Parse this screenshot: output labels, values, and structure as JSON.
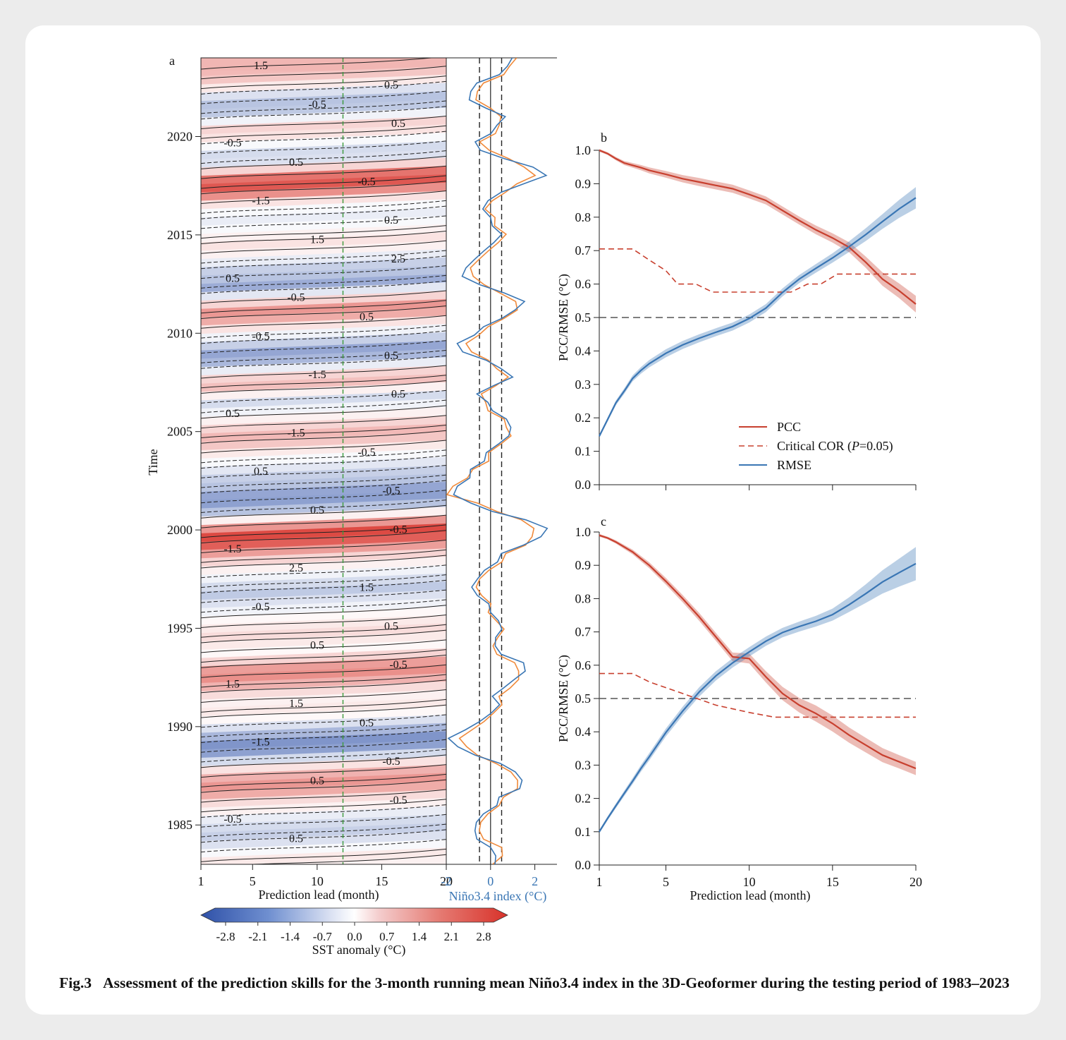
{
  "panel_labels": {
    "a": "a",
    "b": "b",
    "c": "c"
  },
  "caption": {
    "label": "Fig.3",
    "text": "Assessment of the prediction skills for the 3-month running mean Niño3.4 index in the 3D-Geoformer during the testing period of 1983–2023"
  },
  "colors": {
    "pcc": "#c8402f",
    "rmse": "#3a76b4",
    "obs": "#3a76b4",
    "pred": "#f08a3b",
    "ref": "#555555",
    "lead_marker": "#3b9a3b"
  },
  "colorbar": {
    "label": "SST anomaly (°C)",
    "ticks": [
      "-2.8",
      "-2.1",
      "-1.4",
      "-0.7",
      "0.0",
      "0.7",
      "1.4",
      "2.1",
      "2.8"
    ]
  },
  "chart_data": [
    {
      "id": "a-heatmap",
      "type": "heatmap",
      "ylabel": "Time",
      "xlabel": "Prediction lead (month)",
      "xlim": [
        1,
        20
      ],
      "ylim": [
        1983,
        2024
      ],
      "x_ticks": [
        "1",
        "5",
        "10",
        "15",
        "20"
      ],
      "y_ticks": [
        "1985",
        "1990",
        "1995",
        "2000",
        "2005",
        "2010",
        "2015",
        "2020"
      ],
      "contour_labels": [
        "1.5",
        "0.5",
        "-0.5",
        "0.5",
        "-0.5",
        "0.5",
        "-0.5",
        "-1.5",
        "0.5",
        "1.5",
        "2.5",
        "0.5",
        "-0.5",
        "0.5",
        "-0.5",
        "0.5",
        "-1.5",
        "0.5",
        "0.5",
        "-1.5",
        "-0.5",
        "0.5",
        "-0.5",
        "0.5",
        "-0.5",
        "-1.5",
        "2.5",
        "1.5",
        "-0.5",
        "0.5",
        "0.5",
        "-0.5",
        "1.5",
        "1.5",
        "0.5",
        "-1.5",
        "-0.5",
        "0.5",
        "-0.5",
        "-0.5",
        "0.5"
      ],
      "marked_lead": 12
    },
    {
      "id": "a-nino34",
      "type": "line",
      "xlabel": "Niño3.4 index (°C)",
      "xlim": [
        -2.0,
        3.0
      ],
      "x_ticks": [
        "-2",
        "0",
        "2"
      ],
      "threshold_lines": [
        -0.5,
        0.5
      ],
      "series": [
        {
          "key": "obs",
          "values": [
            0.2,
            0.3,
            -0.1,
            -0.5,
            -0.8,
            -0.6,
            -0.3,
            0.2,
            0.5,
            1.2,
            1.5,
            1.1,
            0.4,
            -0.6,
            -1.6,
            -1.8,
            -1.2,
            -0.5,
            0.1,
            0.3,
            0.2,
            0.5,
            1.1,
            1.6,
            1.4,
            0.6,
            0.1,
            0.3,
            0.5,
            0.3,
            0.1,
            -0.2,
            -0.5,
            -0.9,
            -0.6,
            -0.2,
            0.2,
            0.6,
            1.4,
            2.3,
            2.6,
            1.5,
            0.2,
            -1.0,
            -1.6,
            -1.5,
            -1.0,
            -0.8,
            -0.4,
            -0.1,
            0.3,
            0.8,
            1.0,
            0.6,
            0.2,
            -0.2,
            -0.6,
            0.2,
            0.9,
            0.6,
            -0.3,
            -1.2,
            -1.5,
            -0.8,
            -0.2,
            0.4,
            1.2,
            1.5,
            0.6,
            -0.4,
            -1.4,
            -1.0,
            -0.8,
            -0.3,
            0.2,
            0.4,
            0.2,
            -0.1,
            -0.3,
            -0.1,
            0.4,
            1.6,
            2.4,
            2.0,
            0.6,
            -0.5,
            -0.6,
            -0.1,
            0.4,
            0.6,
            -0.2,
            -0.9,
            -1.0,
            -0.5,
            0.3,
            0.8,
            1.0
          ],
          "name": ""
        },
        {
          "key": "pred",
          "values": [
            0.1,
            0.6,
            0.4,
            -0.2,
            -0.6,
            -0.4,
            -0.1,
            0.3,
            0.7,
            1.1,
            1.3,
            0.9,
            0.2,
            -0.5,
            -1.2,
            -1.3,
            -0.9,
            -0.3,
            0.2,
            0.4,
            0.5,
            0.8,
            1.3,
            1.3,
            1.0,
            0.4,
            0.0,
            0.4,
            0.6,
            0.2,
            0.0,
            -0.1,
            -0.3,
            -0.7,
            -0.5,
            0.0,
            0.4,
            0.8,
            1.5,
            1.9,
            2.0,
            1.3,
            0.4,
            -0.7,
            -1.9,
            -1.7,
            -1.1,
            -0.7,
            -0.2,
            0.0,
            0.4,
            0.9,
            0.8,
            0.5,
            0.0,
            -0.3,
            -0.4,
            0.3,
            0.7,
            0.4,
            -0.2,
            -0.8,
            -1.1,
            -0.6,
            0.0,
            0.5,
            1.3,
            1.1,
            0.4,
            -0.2,
            -0.9,
            -0.8,
            -0.6,
            -0.1,
            0.4,
            0.6,
            0.3,
            0.1,
            -0.2,
            0.1,
            0.6,
            1.3,
            1.9,
            1.6,
            0.8,
            -0.1,
            -0.4,
            0.1,
            0.5,
            0.4,
            0.0,
            -0.6,
            -0.7,
            -0.2,
            0.5,
            0.9,
            1.2
          ],
          "name": ""
        }
      ]
    },
    {
      "id": "b",
      "type": "line",
      "xlabel": "",
      "ylabel": "PCC/RMSE (°C)",
      "xlim": [
        1,
        20
      ],
      "ylim": [
        0,
        1
      ],
      "x_ticks": [],
      "y_ticks": [
        "0.0",
        "0.1",
        "0.2",
        "0.3",
        "0.4",
        "0.5",
        "0.6",
        "0.7",
        "0.8",
        "0.9",
        "1.0"
      ],
      "x": [
        1,
        1.5,
        2,
        2.5,
        3,
        3.5,
        4,
        5,
        6,
        7,
        8,
        9,
        10,
        11,
        12,
        13,
        14,
        15,
        16,
        17,
        18,
        19,
        20
      ],
      "reference_line": 0.5,
      "legend_position": "right",
      "series": [
        {
          "key": "pcc",
          "name": "PCC",
          "style": "solid",
          "values": [
            1.0,
            0.99,
            0.975,
            0.962,
            0.955,
            0.948,
            0.94,
            0.928,
            0.915,
            0.905,
            0.895,
            0.885,
            0.868,
            0.85,
            0.82,
            0.79,
            0.762,
            0.738,
            0.71,
            0.665,
            0.615,
            0.58,
            0.54
          ],
          "band": [
            0.004,
            0.004,
            0.005,
            0.006,
            0.007,
            0.008,
            0.009,
            0.01,
            0.011,
            0.012,
            0.012,
            0.012,
            0.012,
            0.012,
            0.012,
            0.012,
            0.013,
            0.014,
            0.015,
            0.017,
            0.02,
            0.022,
            0.025
          ]
        },
        {
          "key": "crit",
          "name": "Critical COR (",
          "name_italic": "P",
          "name_tail": "=0.05)",
          "style": "dashed",
          "steps": [
            [
              1,
              0.705
            ],
            [
              3,
              0.705
            ],
            [
              4,
              0.672
            ],
            [
              5,
              0.64
            ],
            [
              5.7,
              0.6
            ],
            [
              6.8,
              0.6
            ],
            [
              7.8,
              0.576
            ],
            [
              12.5,
              0.576
            ],
            [
              13.5,
              0.6
            ],
            [
              14.3,
              0.6
            ],
            [
              15.3,
              0.63
            ],
            [
              20,
              0.63
            ]
          ]
        },
        {
          "key": "rmse",
          "name": "RMSE",
          "style": "solid",
          "values": [
            0.145,
            0.195,
            0.245,
            0.28,
            0.318,
            0.342,
            0.362,
            0.393,
            0.418,
            0.438,
            0.456,
            0.473,
            0.497,
            0.528,
            0.575,
            0.615,
            0.647,
            0.678,
            0.712,
            0.748,
            0.787,
            0.825,
            0.858
          ],
          "band": [
            0.005,
            0.006,
            0.007,
            0.008,
            0.009,
            0.01,
            0.011,
            0.012,
            0.012,
            0.012,
            0.012,
            0.012,
            0.012,
            0.012,
            0.012,
            0.012,
            0.013,
            0.014,
            0.016,
            0.019,
            0.022,
            0.027,
            0.032
          ]
        }
      ]
    },
    {
      "id": "c",
      "type": "line",
      "xlabel": "Prediction lead (month)",
      "ylabel": "PCC/RMSE (°C)",
      "xlim": [
        1,
        20
      ],
      "ylim": [
        0,
        1
      ],
      "x_ticks": [
        "1",
        "5",
        "10",
        "15",
        "20"
      ],
      "y_ticks": [
        "0.0",
        "0.1",
        "0.2",
        "0.3",
        "0.4",
        "0.5",
        "0.6",
        "0.7",
        "0.8",
        "0.9",
        "1.0"
      ],
      "x": [
        1,
        1.5,
        2,
        2.5,
        3,
        3.5,
        4,
        5,
        6,
        7,
        8,
        9,
        10,
        11,
        12,
        13,
        14,
        15,
        16,
        17,
        18,
        19,
        20
      ],
      "reference_line": 0.5,
      "series": [
        {
          "key": "pcc",
          "name": "PCC",
          "style": "solid",
          "values": [
            0.99,
            0.982,
            0.97,
            0.955,
            0.94,
            0.92,
            0.9,
            0.852,
            0.8,
            0.745,
            0.685,
            0.625,
            0.62,
            0.565,
            0.515,
            0.48,
            0.455,
            0.425,
            0.39,
            0.36,
            0.33,
            0.31,
            0.29
          ],
          "band": [
            0.004,
            0.004,
            0.005,
            0.006,
            0.007,
            0.008,
            0.009,
            0.01,
            0.011,
            0.012,
            0.012,
            0.013,
            0.015,
            0.017,
            0.02,
            0.022,
            0.024,
            0.024,
            0.023,
            0.022,
            0.021,
            0.02,
            0.02
          ]
        },
        {
          "key": "crit",
          "name": "Critical COR",
          "style": "dashed",
          "steps": [
            [
              1,
              0.575
            ],
            [
              3,
              0.575
            ],
            [
              4,
              0.55
            ],
            [
              6,
              0.515
            ],
            [
              8,
              0.48
            ],
            [
              10,
              0.458
            ],
            [
              11.5,
              0.444
            ],
            [
              20,
              0.444
            ]
          ]
        },
        {
          "key": "rmse",
          "name": "RMSE",
          "style": "solid",
          "values": [
            0.1,
            0.14,
            0.178,
            0.215,
            0.252,
            0.29,
            0.325,
            0.398,
            0.462,
            0.52,
            0.568,
            0.607,
            0.64,
            0.672,
            0.698,
            0.716,
            0.732,
            0.752,
            0.782,
            0.815,
            0.85,
            0.878,
            0.905
          ],
          "band": [
            0.005,
            0.006,
            0.007,
            0.008,
            0.009,
            0.01,
            0.011,
            0.012,
            0.013,
            0.014,
            0.014,
            0.014,
            0.014,
            0.014,
            0.014,
            0.015,
            0.016,
            0.018,
            0.022,
            0.028,
            0.035,
            0.042,
            0.05
          ]
        }
      ]
    }
  ]
}
